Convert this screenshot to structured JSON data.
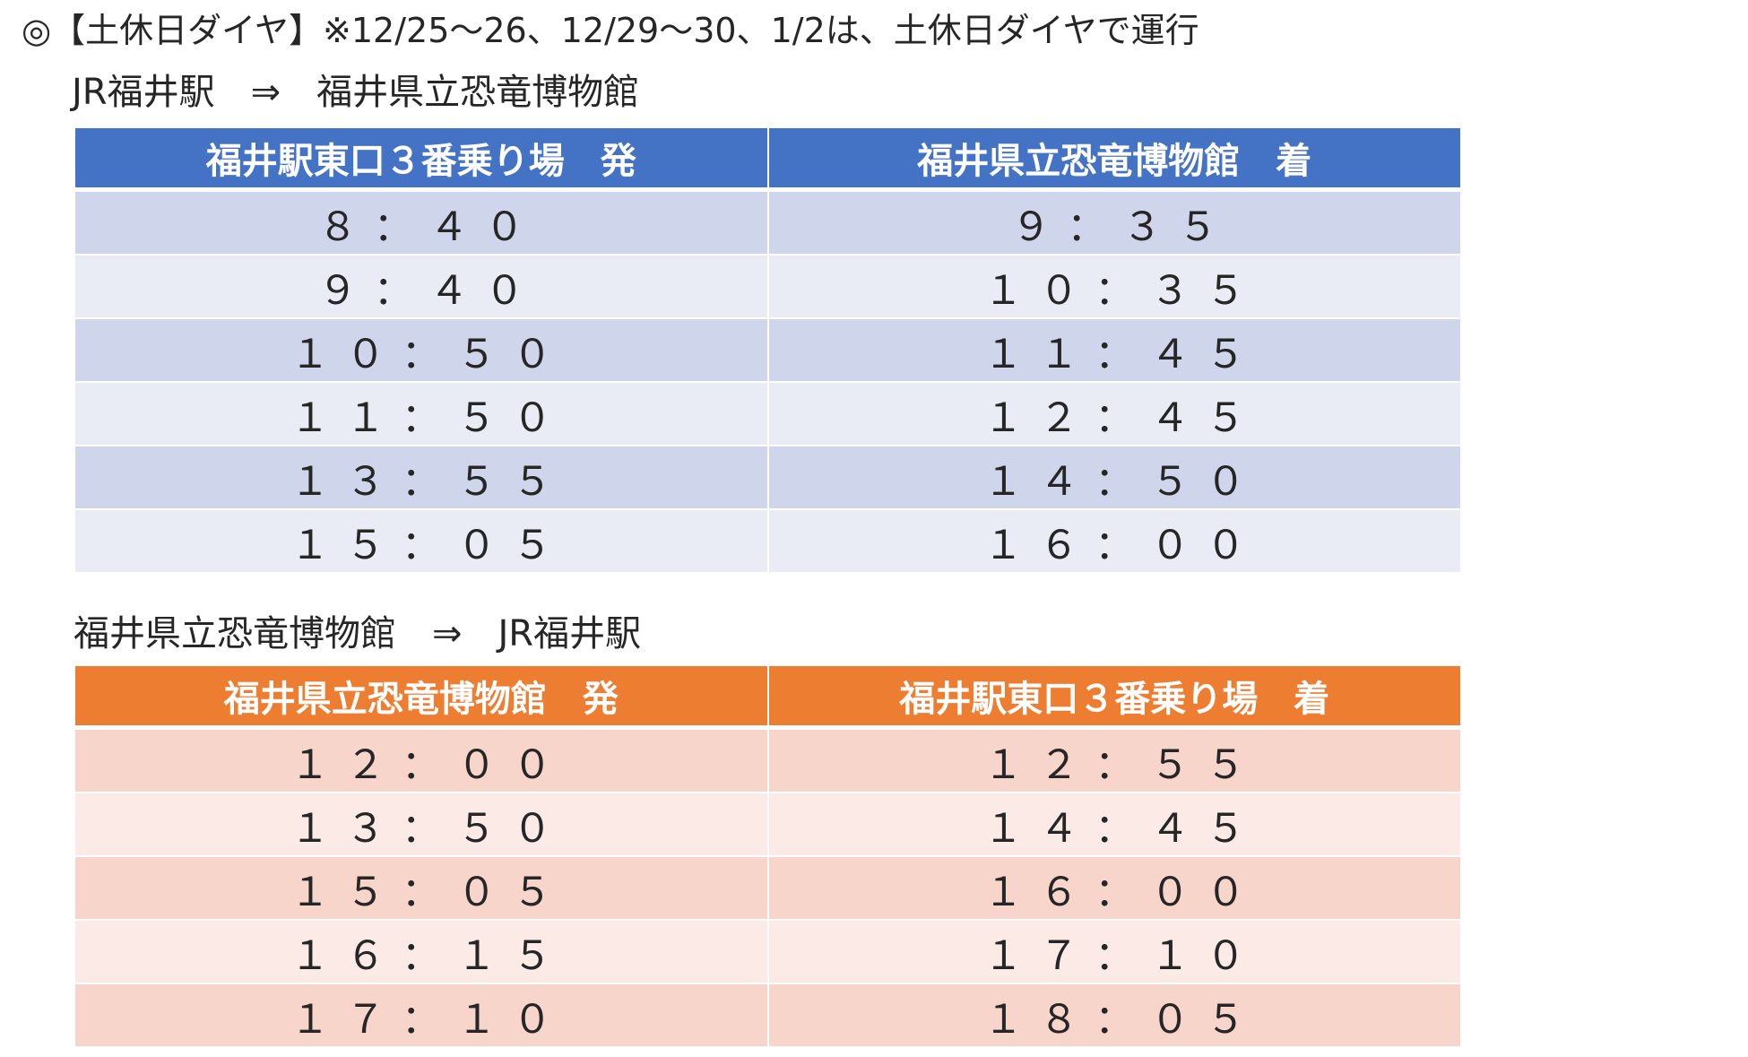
{
  "page_title": "◎【土休日ダイヤ】※12/25〜26、12/29〜30、1/2は、土休日ダイヤで運行",
  "sections": [
    {
      "title": "JR福井駅　⇒　福井県立恐竜博物館",
      "headers": [
        "福井駅東口３番乗り場　発",
        "福井県立恐竜博物館　着"
      ],
      "rows": [
        [
          "８：４０",
          "９：３５"
        ],
        [
          "９：４０",
          "１０：３５"
        ],
        [
          "１０：５０",
          "１１：４５"
        ],
        [
          "１１：５０",
          "１２：４５"
        ],
        [
          "１３：５５",
          "１４：５０"
        ],
        [
          "１５：０５",
          "１６：００"
        ]
      ]
    },
    {
      "title": "福井県立恐竜博物館　⇒　JR福井駅",
      "headers": [
        "福井県立恐竜博物館　発",
        "福井駅東口３番乗り場　着"
      ],
      "rows": [
        [
          "１２：００",
          "１２：５５"
        ],
        [
          "１３：５０",
          "１４：４５"
        ],
        [
          "１５：０５",
          "１６：００"
        ],
        [
          "１６：１５",
          "１７：１０"
        ],
        [
          "１７：１０",
          "１８：０５"
        ]
      ]
    }
  ],
  "colors": {
    "table1_header": "#4472c4",
    "table1_row_odd": "#cfd5ea",
    "table1_row_even": "#e9ebf5",
    "table2_header": "#ed7d31",
    "table2_row_odd": "#f8d5cb",
    "table2_row_even": "#fbeae6"
  }
}
